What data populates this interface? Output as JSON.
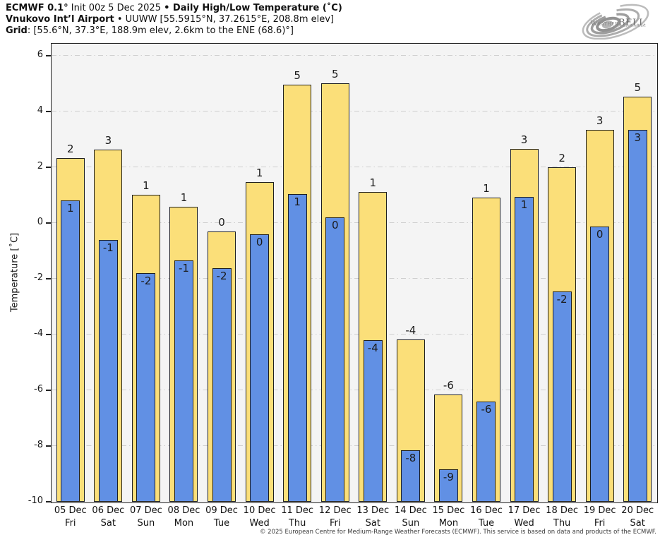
{
  "header": {
    "line1": {
      "bold1": "ECMWF 0.1°",
      "reg1": " Init 00z 5 Dec 2025 ",
      "bold2": "• Daily High/Low Temperature (˚C)"
    },
    "line2": {
      "bold": "Vnukovo Int’l Airport",
      "reg": " • UUWW [55.5915°N, 37.2615°E, 208.8m elev]"
    },
    "line3": {
      "bold": "Grid",
      "reg": ": [55.6°N, 37.3°E, 188.9m elev, 2.6km to the ENE (68.6)°]"
    }
  },
  "logo": {
    "weather": "Weather",
    "bell": "BELL",
    "sub": "Analytics LLC"
  },
  "footer": {
    "copyright": "© 2025 European Centre for Medium-Range Weather Forecasts (ECMWF). This service is based on data and products of the ECMWF."
  },
  "colors": {
    "bar_high": "#FBDF79",
    "bar_low": "#6190E4",
    "bar_border": "#1F1F1F",
    "plot_bg": "#F4F4F4",
    "gridline": "#CFCFCF",
    "axis": "#222222"
  },
  "chart_data": {
    "type": "bar",
    "title": "ECMWF 0.1° Init 00z 5 Dec 2025 • Daily High/Low Temperature (˚C)",
    "subtitle": "Vnukovo Int’l Airport • UUWW [55.5915°N, 37.2615°E, 208.8m elev]",
    "ylabel": "Temperature [˚C]",
    "xlabel": "",
    "ylim": [
      -10,
      6.43
    ],
    "yticks": [
      6,
      4,
      2,
      0,
      -2,
      -4,
      -6,
      -8,
      -10
    ],
    "grid": "horizontal dash-dot",
    "legend": "none",
    "categories": [
      {
        "date": "05 Dec",
        "day": "Fri"
      },
      {
        "date": "06 Dec",
        "day": "Sat"
      },
      {
        "date": "07 Dec",
        "day": "Sun"
      },
      {
        "date": "08 Dec",
        "day": "Mon"
      },
      {
        "date": "09 Dec",
        "day": "Tue"
      },
      {
        "date": "10 Dec",
        "day": "Wed"
      },
      {
        "date": "11 Dec",
        "day": "Thu"
      },
      {
        "date": "12 Dec",
        "day": "Fri"
      },
      {
        "date": "13 Dec",
        "day": "Sat"
      },
      {
        "date": "14 Dec",
        "day": "Sun"
      },
      {
        "date": "15 Dec",
        "day": "Mon"
      },
      {
        "date": "16 Dec",
        "day": "Tue"
      },
      {
        "date": "17 Dec",
        "day": "Wed"
      },
      {
        "date": "18 Dec",
        "day": "Thu"
      },
      {
        "date": "19 Dec",
        "day": "Fri"
      },
      {
        "date": "20 Dec",
        "day": "Sat"
      }
    ],
    "series": [
      {
        "name": "daily-high",
        "values": [
          2.32,
          2.62,
          1.0,
          0.57,
          -0.31,
          1.47,
          4.97,
          5.0,
          1.12,
          -4.18,
          -6.16,
          0.91,
          2.66,
          2.0,
          3.33,
          4.52
        ],
        "labels": [
          "2",
          "3",
          "1",
          "1",
          "0",
          "1",
          "5",
          "5",
          "1",
          "-4",
          "-6",
          "1",
          "3",
          "2",
          "3",
          "5"
        ]
      },
      {
        "name": "daily-low",
        "values": [
          0.8,
          -0.61,
          -1.79,
          -1.35,
          -1.62,
          -0.4,
          1.04,
          0.19,
          -4.2,
          -8.16,
          -8.84,
          -6.41,
          0.94,
          -2.45,
          -0.12,
          3.35
        ],
        "labels": [
          "1",
          "-1",
          "-2",
          "-1",
          "-2",
          "0",
          "1",
          "0",
          "-4",
          "-8",
          "-9",
          "-6",
          "1",
          "-2",
          "0",
          "3"
        ]
      }
    ]
  }
}
